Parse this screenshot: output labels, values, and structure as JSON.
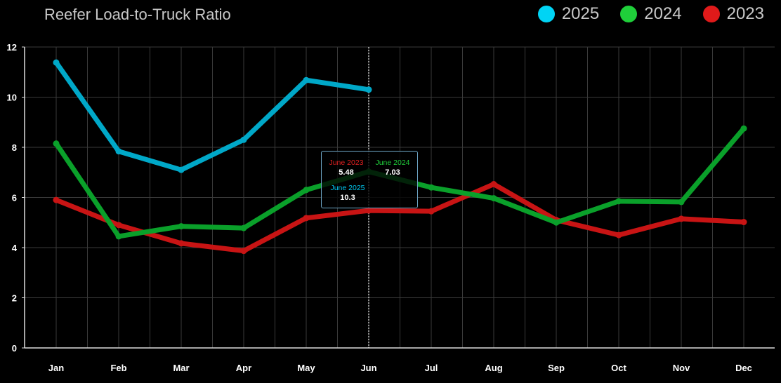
{
  "header": {
    "title": "Reefer Load-to-Truck Ratio"
  },
  "legend": [
    {
      "label": "2025",
      "color": "#00d4f5"
    },
    {
      "label": "2024",
      "color": "#1fcf3a"
    },
    {
      "label": "2023",
      "color": "#e01a1a"
    }
  ],
  "tooltip": {
    "month_index": 5,
    "entries": [
      {
        "label": "June 2023",
        "value": "5.48",
        "color": "#e02020"
      },
      {
        "label": "June 2024",
        "value": "7.03",
        "color": "#1fcf3a"
      },
      {
        "label": "June 2025",
        "value": "10.3",
        "color": "#00c8f0"
      }
    ]
  },
  "chart_data": {
    "type": "line",
    "title": "Reefer Load-to-Truck Ratio",
    "categories": [
      "Jan",
      "Feb",
      "Mar",
      "Apr",
      "May",
      "Jun",
      "Jul",
      "Aug",
      "Sep",
      "Oct",
      "Nov",
      "Dec"
    ],
    "ylim": [
      0,
      12
    ],
    "yticks": [
      0,
      2,
      4,
      6,
      8,
      10,
      12
    ],
    "grid": true,
    "legend_position": "top-right",
    "series": [
      {
        "name": "2025",
        "color": "#00a8c8",
        "values": [
          11.38,
          7.84,
          7.1,
          8.3,
          10.68,
          10.3,
          null,
          null,
          null,
          null,
          null,
          null
        ]
      },
      {
        "name": "2024",
        "color": "#0aa02a",
        "values": [
          8.15,
          4.45,
          4.85,
          4.78,
          6.3,
          7.03,
          6.4,
          5.97,
          5.0,
          5.85,
          5.82,
          8.75
        ]
      },
      {
        "name": "2023",
        "color": "#c81414",
        "values": [
          5.9,
          4.9,
          4.17,
          3.87,
          5.18,
          5.48,
          5.45,
          6.53,
          5.1,
          4.5,
          5.15,
          5.02
        ]
      }
    ]
  }
}
